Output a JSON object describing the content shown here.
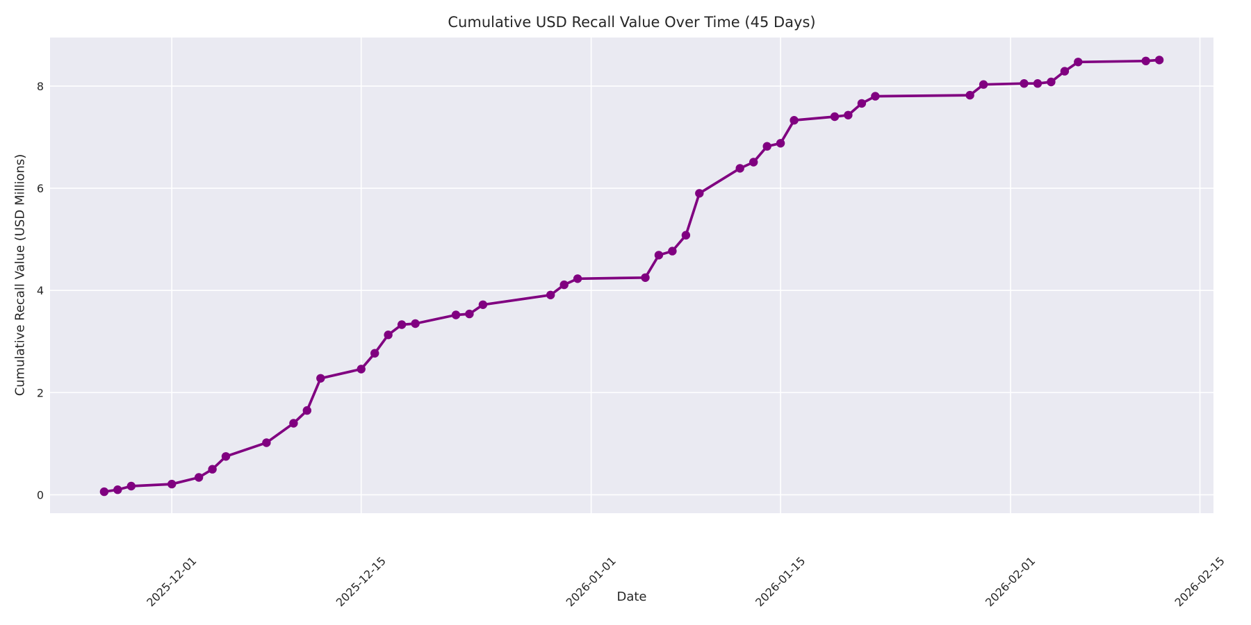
{
  "figure": {
    "title": "Cumulative USD Recall Value Over Time (45 Days)",
    "xlabel": "Date",
    "ylabel": "Cumulative Recall Value (USD Millions)"
  },
  "chart_data": {
    "type": "line",
    "title": "Cumulative USD Recall Value Over Time (45 Days)",
    "xlabel": "Date",
    "ylabel": "Cumulative Recall Value (USD Millions)",
    "grid": true,
    "legend": "none",
    "line_color": "#800080",
    "marker": "circle",
    "plot_bg_color": "#eaeaf2",
    "grid_color": "#ffffff",
    "text_color": "#262626",
    "figure_bg_color": "#ffffff",
    "x_ticks": [
      "2025-12-01",
      "2025-12-15",
      "2026-01-01",
      "2026-01-15",
      "2026-02-01",
      "2026-02-15"
    ],
    "y_ticks": [
      0,
      2,
      4,
      6,
      8
    ],
    "x_domain": [
      "2025-11-22",
      "2026-02-16"
    ],
    "y_domain": [
      -0.36,
      8.95
    ],
    "series": [
      {
        "name": "Cumulative Recall Value",
        "x": [
          "2025-11-26",
          "2025-11-27",
          "2025-11-28",
          "2025-12-01",
          "2025-12-03",
          "2025-12-04",
          "2025-12-05",
          "2025-12-08",
          "2025-12-10",
          "2025-12-11",
          "2025-12-12",
          "2025-12-15",
          "2025-12-16",
          "2025-12-17",
          "2025-12-18",
          "2025-12-19",
          "2025-12-22",
          "2025-12-23",
          "2025-12-24",
          "2025-12-29",
          "2025-12-30",
          "2025-12-31",
          "2026-01-05",
          "2026-01-06",
          "2026-01-07",
          "2026-01-08",
          "2026-01-09",
          "2026-01-12",
          "2026-01-13",
          "2026-01-14",
          "2026-01-15",
          "2026-01-16",
          "2026-01-19",
          "2026-01-20",
          "2026-01-21",
          "2026-01-22",
          "2026-01-29",
          "2026-01-30",
          "2026-02-02",
          "2026-02-03",
          "2026-02-04",
          "2026-02-05",
          "2026-02-06",
          "2026-02-11",
          "2026-02-12"
        ],
        "y": [
          0.06,
          0.1,
          0.17,
          0.21,
          0.34,
          0.5,
          0.75,
          1.02,
          1.4,
          1.65,
          2.28,
          2.46,
          2.77,
          3.13,
          3.33,
          3.35,
          3.52,
          3.54,
          3.72,
          3.91,
          4.11,
          4.23,
          4.25,
          4.69,
          4.77,
          5.08,
          5.9,
          6.39,
          6.51,
          6.82,
          6.88,
          7.33,
          7.4,
          7.43,
          7.66,
          7.8,
          7.82,
          8.03,
          8.05,
          8.05,
          8.08,
          8.29,
          8.47,
          8.49,
          8.51
        ]
      }
    ]
  }
}
